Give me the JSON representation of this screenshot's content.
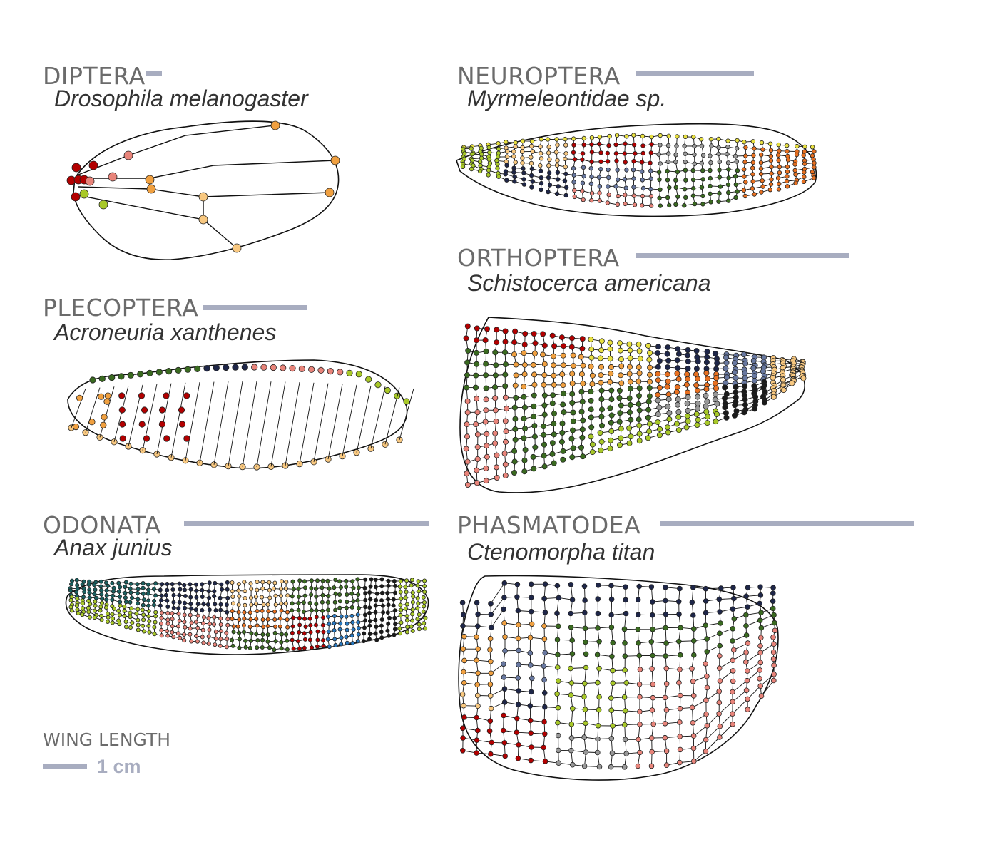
{
  "panels": [
    {
      "order": "DIPTERA",
      "species": "Drosophila melanogaster"
    },
    {
      "order": "NEUROPTERA",
      "species": "Myrmeleontidae sp."
    },
    {
      "order": "PLECOPTERA",
      "species": "Acroneuria xanthenes"
    },
    {
      "order": "ORTHOPTERA",
      "species": "Schistocerca americana"
    },
    {
      "order": "ODONATA",
      "species": "Anax junius"
    },
    {
      "order": "PHASMATODEA",
      "species": "Ctenomorpha titan"
    }
  ],
  "legend": {
    "title": "WING LENGTH",
    "scale_label": "1 cm"
  },
  "colors": {
    "scale_bar": "#a8adc0",
    "order_text": "#6b6b6b",
    "node_palette": [
      "#b30000",
      "#e8847a",
      "#f0a040",
      "#f8c880",
      "#e87020",
      "#a8c828",
      "#e8e040",
      "#3a6a20",
      "#1e2648",
      "#6878a0",
      "#989898",
      "#1a1a1a",
      "#2878c0",
      "#1a6060"
    ]
  }
}
